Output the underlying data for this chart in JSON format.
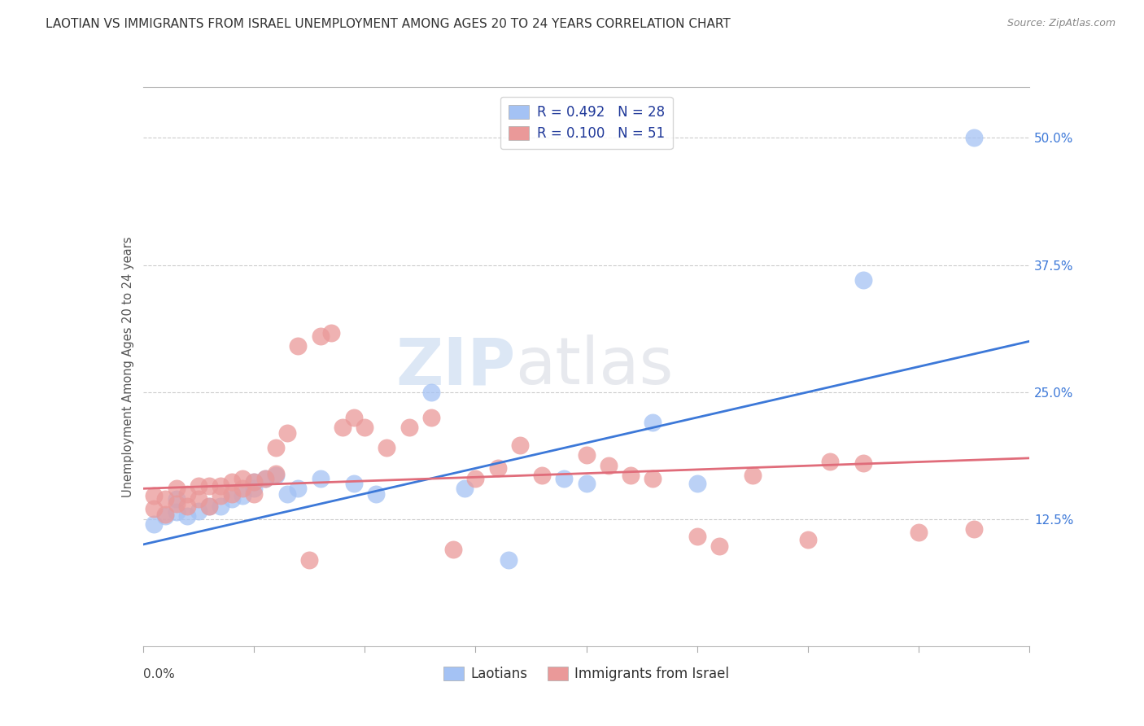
{
  "title": "LAOTIAN VS IMMIGRANTS FROM ISRAEL UNEMPLOYMENT AMONG AGES 20 TO 24 YEARS CORRELATION CHART",
  "source": "Source: ZipAtlas.com",
  "ylabel": "Unemployment Among Ages 20 to 24 years",
  "ylabel_right_ticks": [
    "50.0%",
    "37.5%",
    "25.0%",
    "12.5%"
  ],
  "ylabel_right_vals": [
    0.5,
    0.375,
    0.25,
    0.125
  ],
  "legend1_label": "R = 0.492   N = 28",
  "legend2_label": "R = 0.100   N = 51",
  "legend_laotians": "Laotians",
  "legend_israel": "Immigrants from Israel",
  "watermark": "ZIPatlas",
  "blue_color": "#a4c2f4",
  "pink_color": "#ea9999",
  "blue_line_color": "#3c78d8",
  "pink_line_color": "#e06c7a",
  "x_min": 0.0,
  "x_max": 0.08,
  "y_min": 0.0,
  "y_max": 0.55,
  "blue_x": [
    0.001,
    0.002,
    0.003,
    0.003,
    0.004,
    0.005,
    0.006,
    0.007,
    0.008,
    0.009,
    0.01,
    0.01,
    0.011,
    0.012,
    0.013,
    0.014,
    0.016,
    0.019,
    0.021,
    0.026,
    0.029,
    0.033,
    0.038,
    0.04,
    0.046,
    0.05,
    0.065,
    0.075
  ],
  "blue_y": [
    0.12,
    0.128,
    0.132,
    0.145,
    0.128,
    0.133,
    0.138,
    0.138,
    0.145,
    0.148,
    0.155,
    0.162,
    0.165,
    0.168,
    0.15,
    0.155,
    0.165,
    0.16,
    0.15,
    0.25,
    0.155,
    0.085,
    0.165,
    0.16,
    0.22,
    0.16,
    0.36,
    0.5
  ],
  "pink_x": [
    0.001,
    0.001,
    0.002,
    0.002,
    0.003,
    0.003,
    0.004,
    0.004,
    0.005,
    0.005,
    0.006,
    0.006,
    0.007,
    0.007,
    0.008,
    0.008,
    0.009,
    0.009,
    0.01,
    0.01,
    0.011,
    0.012,
    0.012,
    0.013,
    0.014,
    0.015,
    0.016,
    0.017,
    0.018,
    0.019,
    0.02,
    0.022,
    0.024,
    0.026,
    0.028,
    0.03,
    0.032,
    0.034,
    0.036,
    0.04,
    0.042,
    0.044,
    0.046,
    0.05,
    0.052,
    0.055,
    0.06,
    0.062,
    0.065,
    0.07,
    0.075
  ],
  "pink_y": [
    0.135,
    0.148,
    0.13,
    0.145,
    0.14,
    0.155,
    0.138,
    0.15,
    0.145,
    0.158,
    0.138,
    0.158,
    0.148,
    0.158,
    0.15,
    0.162,
    0.155,
    0.165,
    0.15,
    0.162,
    0.165,
    0.195,
    0.17,
    0.21,
    0.295,
    0.085,
    0.305,
    0.308,
    0.215,
    0.225,
    0.215,
    0.195,
    0.215,
    0.225,
    0.095,
    0.165,
    0.175,
    0.198,
    0.168,
    0.188,
    0.178,
    0.168,
    0.165,
    0.108,
    0.098,
    0.168,
    0.105,
    0.182,
    0.18,
    0.112,
    0.115
  ]
}
